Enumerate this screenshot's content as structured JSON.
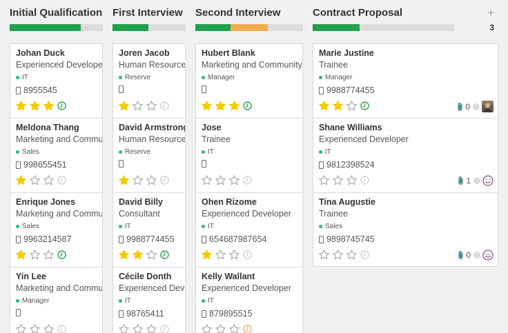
{
  "colors": {
    "green": "#22a04b",
    "orange": "#f0ad4e",
    "grey_bar": "#dcdcdc",
    "star_filled": "#f3cc00",
    "star_empty": "#a8a8a8",
    "activity_green": "#22a04b",
    "activity_orange": "#f0ad4e",
    "activity_grey": "#cfcfcf",
    "tag_dot": "#21b799",
    "smiley": "#8a4c86",
    "clip": "#2a8080"
  },
  "columns": [
    {
      "title": "Initial Qualification",
      "progress": [
        {
          "color": "green",
          "fraction": 0.76
        }
      ],
      "show_add": false,
      "count": "",
      "cards": [
        {
          "name": "Johan Duck",
          "job": "Experienced Developer",
          "tag": "IT",
          "phone": "8955545",
          "stars": 3,
          "activity": "green",
          "icon": "phone-icon",
          "attachments": null,
          "avatar": "none"
        },
        {
          "name": "Meldona Thang",
          "job": "Marketing and Community",
          "tag": "Sales",
          "phone": "998655451",
          "stars": 1,
          "activity": "grey",
          "icon": "phone-icon",
          "attachments": null,
          "avatar": "none"
        },
        {
          "name": "Enrique Jones",
          "job": "Marketing and Community",
          "tag": "Sales",
          "phone": "9963214587",
          "stars": 1,
          "activity": "green",
          "icon": "phone-icon",
          "attachments": null,
          "avatar": "none"
        },
        {
          "name": "Yin Lee",
          "job": "Marketing and Community",
          "tag": "Manager",
          "phone": "",
          "stars": 0,
          "activity": "grey",
          "icon": "phone-icon",
          "attachments": null,
          "avatar": "none"
        }
      ]
    },
    {
      "title": "First Interview",
      "progress": [
        {
          "color": "green",
          "fraction": 0.49
        }
      ],
      "show_add": false,
      "count": "",
      "cards": [
        {
          "name": "Joren Jacob",
          "job": "Human Resources",
          "tag": "Reserve",
          "phone": "",
          "stars": 1,
          "activity": "grey",
          "icon": "phone-icon",
          "attachments": null,
          "avatar": "none"
        },
        {
          "name": "David Armstrong",
          "job": "Human Resources",
          "tag": "Reserve",
          "phone": "",
          "stars": 1,
          "activity": "grey",
          "icon": "phone-icon",
          "attachments": null,
          "avatar": "none"
        },
        {
          "name": "David Billy",
          "job": "Consultant",
          "tag": "IT",
          "phone": "9988774455",
          "stars": 2,
          "activity": "green",
          "icon": "phone-icon",
          "attachments": null,
          "avatar": "none"
        },
        {
          "name": "Cécile Donth",
          "job": "Experienced Developer",
          "tag": "IT",
          "phone": "98765411",
          "stars": 0,
          "activity": "grey",
          "icon": "phone-icon",
          "attachments": null,
          "avatar": "none"
        }
      ]
    },
    {
      "title": "Second Interview",
      "progress": [
        {
          "color": "green",
          "fraction": 0.33
        },
        {
          "color": "orange",
          "fraction": 0.34
        }
      ],
      "show_add": false,
      "count": "",
      "cards": [
        {
          "name": "Hubert Blank",
          "job": "Marketing and Community Manager",
          "tag": "Manager",
          "phone": "",
          "stars": 3,
          "activity": "green",
          "icon": "phone-icon",
          "attachments": null,
          "avatar": "none"
        },
        {
          "name": "Jose",
          "job": "Trainee",
          "tag": "IT",
          "phone": "",
          "stars": 0,
          "activity": "grey",
          "icon": "phone-icon",
          "attachments": null,
          "avatar": "none"
        },
        {
          "name": "Ohen Rizome",
          "job": "Experienced Developer",
          "tag": "IT",
          "phone": "654687987654",
          "stars": 1,
          "activity": "grey",
          "icon": "phone-icon",
          "attachments": null,
          "avatar": "none"
        },
        {
          "name": "Kelly Wallant",
          "job": "Experienced Developer",
          "tag": "IT",
          "phone": "879895515",
          "stars": 0,
          "activity": "orange",
          "icon": "phone-icon",
          "attachments": null,
          "avatar": "none"
        }
      ]
    },
    {
      "title": "Contract Proposal",
      "progress": [
        {
          "color": "green",
          "fraction": 0.33
        }
      ],
      "show_add": true,
      "add_label": "+",
      "count": "3",
      "cards": [
        {
          "name": "Marie Justine",
          "job": "Trainee",
          "tag": "Manager",
          "phone": "9988774455",
          "stars": 2,
          "activity": "green",
          "icon": "phone-icon",
          "attachments": "0",
          "avatar": "photo"
        },
        {
          "name": "Shane Williams",
          "job": "Experienced Developer",
          "tag": "IT",
          "phone": "9812398524",
          "stars": 0,
          "activity": "grey",
          "icon": "phone-icon",
          "attachments": "1",
          "avatar": "smiley"
        },
        {
          "name": "Tina Augustie",
          "job": "Trainee",
          "tag": "Sales",
          "phone": "9898745745",
          "stars": 0,
          "activity": "grey",
          "icon": "phone-icon",
          "attachments": "0",
          "avatar": "smiley"
        }
      ]
    }
  ]
}
